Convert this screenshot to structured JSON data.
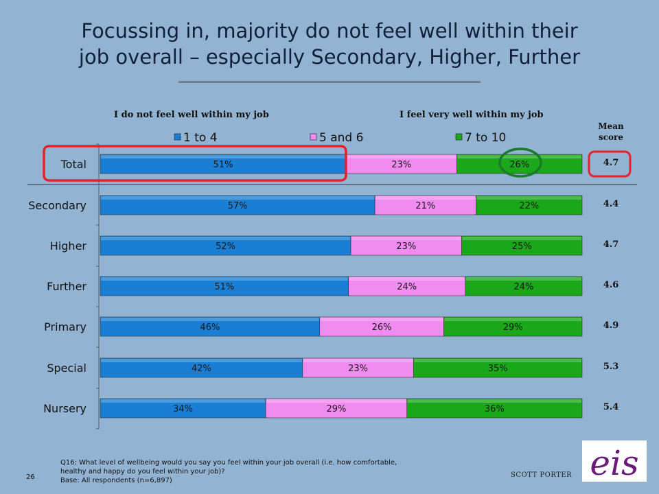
{
  "title": {
    "line1": "Focussing in, majority do not feel well within their",
    "line2": "job overall – especially Secondary, Higher, Further"
  },
  "headers": {
    "left": "I do not feel well within my job",
    "right": "I feel very well within my job",
    "mean_line1": "Mean",
    "mean_line2": "score"
  },
  "colors": {
    "background": "#92b3d1",
    "series_1_to_4": "#1a7fd4",
    "series_5_and_6": "#f08cf0",
    "series_7_to_10": "#1aa81a",
    "highlight_box": "#e8202a",
    "highlight_circle": "#1a7a2a"
  },
  "chart_data": {
    "type": "bar",
    "orientation": "horizontal",
    "stacked": true,
    "categories": [
      "Total",
      "Secondary",
      "Higher",
      "Further",
      "Primary",
      "Special",
      "Nursery"
    ],
    "series": [
      {
        "name": "1 to 4",
        "values": [
          51,
          57,
          52,
          51,
          46,
          42,
          34
        ]
      },
      {
        "name": "5 and 6",
        "values": [
          23,
          21,
          23,
          24,
          26,
          23,
          29
        ]
      },
      {
        "name": "7 to 10",
        "values": [
          26,
          22,
          25,
          24,
          29,
          35,
          36
        ]
      }
    ],
    "data_labels": [
      [
        "51%",
        "57%",
        "52%",
        "51%",
        "46%",
        "42%",
        "34%"
      ],
      [
        "23%",
        "21%",
        "23%",
        "24%",
        "26%",
        "23%",
        "29%"
      ],
      [
        "26%",
        "22%",
        "25%",
        "24%",
        "29%",
        "35%",
        "36%"
      ]
    ],
    "mean_scores": [
      "4.7",
      "4.4",
      "4.7",
      "4.6",
      "4.9",
      "5.3",
      "5.4"
    ],
    "legend_position": "top",
    "unit": "%"
  },
  "footnote": {
    "line1": "Q16: What level of wellbeing would you say you feel within your job overall (i.e. how comfortable,",
    "line2": "healthy and happy do you feel within your job)?",
    "line3": "Base: All respondents (n=6,897)"
  },
  "page_number": "26",
  "brand": "SCOTT PORTER",
  "logo_text": "eis"
}
